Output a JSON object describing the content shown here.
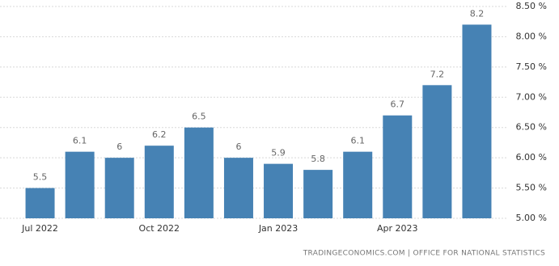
{
  "chart_data": {
    "type": "bar",
    "categories": [
      "Jul 2022",
      null,
      null,
      "Oct 2022",
      null,
      null,
      "Jan 2023",
      null,
      null,
      "Apr 2023",
      null,
      null
    ],
    "values": [
      5.5,
      6.1,
      6,
      6.2,
      6.5,
      6,
      5.9,
      5.8,
      6.1,
      6.7,
      7.2,
      8.2
    ],
    "color": "#4682b4",
    "ylim": [
      5,
      8.5
    ],
    "yticks": [
      {
        "value": 5,
        "label": "5.00 %"
      },
      {
        "value": 5.5,
        "label": "5.50 %"
      },
      {
        "value": 6,
        "label": "6.00 %"
      },
      {
        "value": 6.5,
        "label": "6.50 %"
      },
      {
        "value": 7,
        "label": "7.00 %"
      },
      {
        "value": 7.5,
        "label": "7.50 %"
      },
      {
        "value": 8,
        "label": "8.00 %"
      },
      {
        "value": 8.5,
        "label": "8.50 %"
      }
    ],
    "grid": true,
    "source": "TRADINGECONOMICS.COM | OFFICE FOR NATIONAL STATISTICS"
  }
}
